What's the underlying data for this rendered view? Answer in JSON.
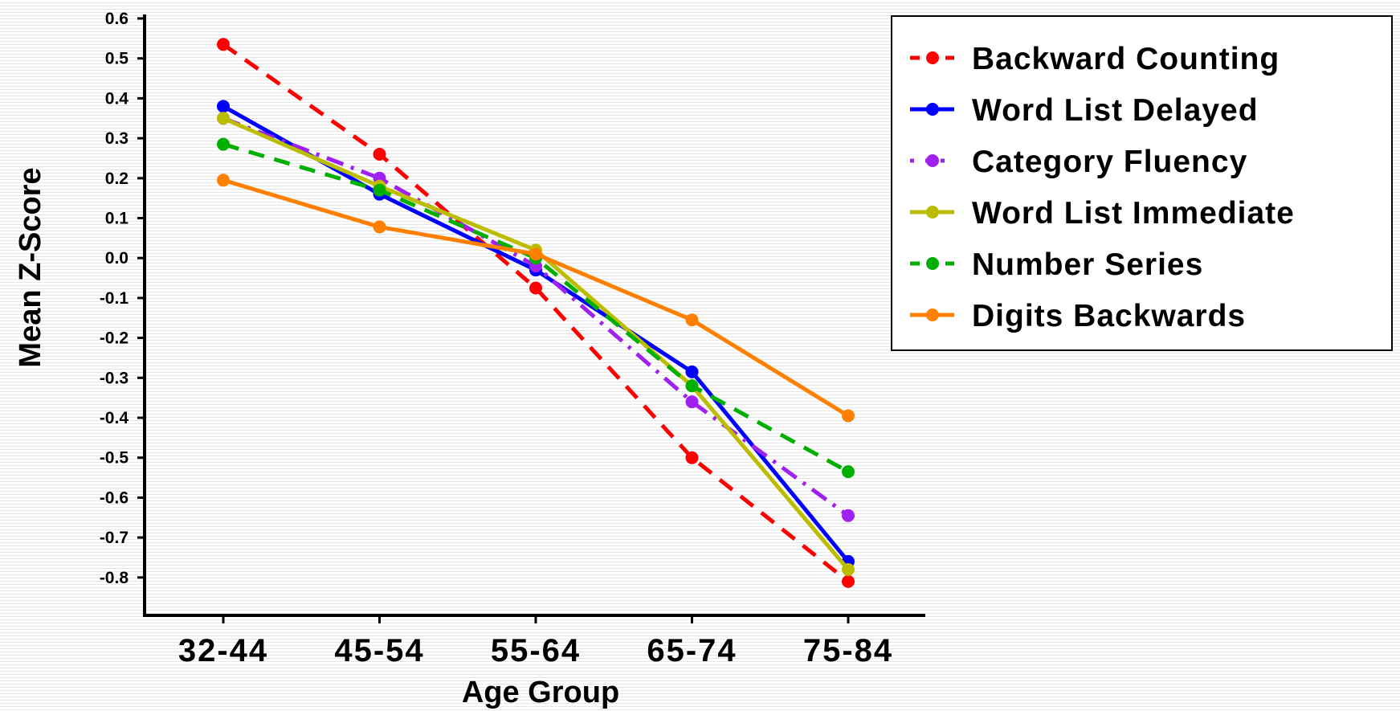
{
  "chart_data": {
    "type": "line",
    "title": "",
    "xlabel": "Age Group",
    "ylabel": "Mean Z-Score",
    "categories": [
      "32-44",
      "45-54",
      "55-64",
      "65-74",
      "75-84"
    ],
    "ylim": [
      -0.9,
      0.6
    ],
    "yticks": [
      "0.6",
      "0.5",
      "0.4",
      "0.3",
      "0.2",
      "0.1",
      "0.0",
      "-0.1",
      "-0.2",
      "-0.3",
      "-0.4",
      "-0.5",
      "-0.6",
      "-0.7",
      "-0.8"
    ],
    "ytick_values": [
      0.6,
      0.5,
      0.4,
      0.3,
      0.2,
      0.1,
      0.0,
      -0.1,
      -0.2,
      -0.3,
      -0.4,
      -0.5,
      -0.6,
      -0.7,
      -0.8
    ],
    "legend_position": "top-right",
    "grid": false,
    "series": [
      {
        "name": "Backward Counting",
        "color": "#ff0000",
        "style": "dashed",
        "values": [
          0.535,
          0.26,
          -0.075,
          -0.5,
          -0.81
        ]
      },
      {
        "name": "Word List Delayed",
        "color": "#0000ff",
        "style": "solid",
        "values": [
          0.38,
          0.16,
          -0.03,
          -0.285,
          -0.76
        ]
      },
      {
        "name": "Category Fluency",
        "color": "#a020f0",
        "style": "dashdot",
        "values": [
          0.35,
          0.2,
          -0.02,
          -0.36,
          -0.645
        ]
      },
      {
        "name": "Word List Immediate",
        "color": "#bdbd00",
        "style": "solid",
        "values": [
          0.35,
          0.18,
          0.02,
          -0.32,
          -0.78
        ]
      },
      {
        "name": "Number Series",
        "color": "#00b000",
        "style": "dashed",
        "values": [
          0.285,
          0.17,
          0.0,
          -0.32,
          -0.535
        ]
      },
      {
        "name": "Digits Backwards",
        "color": "#ff8000",
        "style": "solid",
        "values": [
          0.195,
          0.078,
          0.01,
          -0.155,
          -0.395
        ]
      }
    ]
  }
}
